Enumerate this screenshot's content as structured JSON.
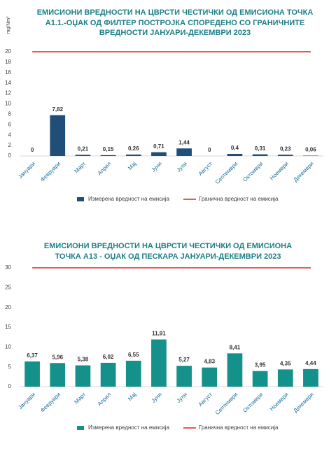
{
  "chart_data": [
    {
      "type": "bar",
      "title": "ЕМИСИОНИ ВРЕДНОСТИ НА ЦВРСТИ ЧЕСТИЧКИ ОД ЕМИСИОНА ТОЧКА А1.1.-ОЏАК ОД ФИЛТЕР ПОСТРОЈКА СПОРЕДЕНО СО ГРАНИЧНИТЕ ВРЕДНОСТИ ЈАНУАРИ-ДЕКЕМВРИ 2023",
      "y_label": "mg/Nm³",
      "categories": [
        "Јануари",
        "Февруари",
        "Март",
        "Април",
        "Мај",
        "Јуни",
        "Јули",
        "Август",
        "Септември",
        "Октомври",
        "Ноември",
        "Декември"
      ],
      "series": [
        {
          "name": "Измерена вредност на емисија",
          "color": "#1f4e79",
          "type": "bar",
          "values": [
            0,
            7.82,
            0.21,
            0.15,
            0.26,
            0.71,
            1.44,
            0,
            0.4,
            0.31,
            0.23,
            0.06
          ],
          "value_labels": [
            "0",
            "7,82",
            "0,21",
            "0,15",
            "0,26",
            "0,71",
            "1,44",
            "0",
            "0,4",
            "0,31",
            "0,23",
            "0,06"
          ]
        },
        {
          "name": "Гранична вредност на емисија",
          "color": "#e02020",
          "type": "line",
          "values": [
            20,
            20,
            20,
            20,
            20,
            20,
            20,
            20,
            20,
            20,
            20,
            20
          ]
        }
      ],
      "ylim": [
        0,
        20
      ],
      "yticks": [
        0,
        2,
        4,
        6,
        8,
        10,
        12,
        14,
        16,
        18,
        20
      ],
      "grid": false,
      "legend": "bottom"
    },
    {
      "type": "bar",
      "title": "ЕМИСИОНИ ВРЕДНОСТИ НА ЦВРСТИ ЧЕСТИЧКИ ОД ЕМИСИОНА ТОЧКА А13 - ОЏАК ОД ПЕСКАРА ЈАНУАРИ-ДЕКЕМВРИ 2023",
      "categories": [
        "Јануари",
        "Февруари",
        "Март",
        "Април",
        "Мај",
        "Јуни",
        "Јули",
        "Август",
        "Септември",
        "Октомври",
        "Ноември",
        "Декември"
      ],
      "series": [
        {
          "name": "Измерена вредност на емисија",
          "color": "#13918a",
          "type": "bar",
          "values": [
            6.37,
            5.96,
            5.38,
            6.02,
            6.55,
            11.91,
            5.27,
            4.83,
            8.41,
            3.95,
            4.35,
            4.44
          ],
          "value_labels": [
            "6,37",
            "5,96",
            "5,38",
            "6,02",
            "6,55",
            "11,91",
            "5,27",
            "4,83",
            "8,41",
            "3,95",
            "4,35",
            "4,44"
          ]
        },
        {
          "name": "Гранична вредност на емисија",
          "color": "#e02020",
          "type": "line",
          "values": [
            30,
            30,
            30,
            30,
            30,
            30,
            30,
            30,
            30,
            30,
            30,
            30
          ]
        }
      ],
      "ylim": [
        0,
        30
      ],
      "yticks": [
        0,
        5,
        10,
        15,
        20,
        25,
        30
      ],
      "grid": false,
      "legend": "bottom"
    }
  ]
}
